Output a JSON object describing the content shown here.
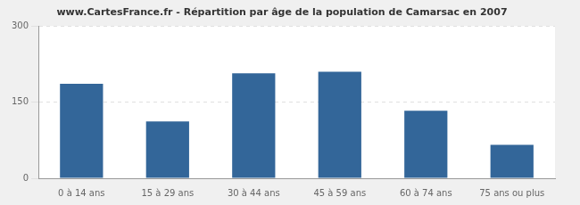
{
  "chart_data": {
    "type": "bar",
    "title": "www.CartesFrance.fr - Répartition par âge de la population de Camarsac en 2007",
    "categories": [
      "0 à 14 ans",
      "15 à 29 ans",
      "30 à 44 ans",
      "45 à 59 ans",
      "60 à 74 ans",
      "75 ans ou plus"
    ],
    "values": [
      186,
      112,
      207,
      210,
      133,
      66
    ],
    "color": "#336699",
    "ylim": [
      0,
      300
    ],
    "yticks": [
      0,
      150,
      300
    ],
    "grid": true
  }
}
